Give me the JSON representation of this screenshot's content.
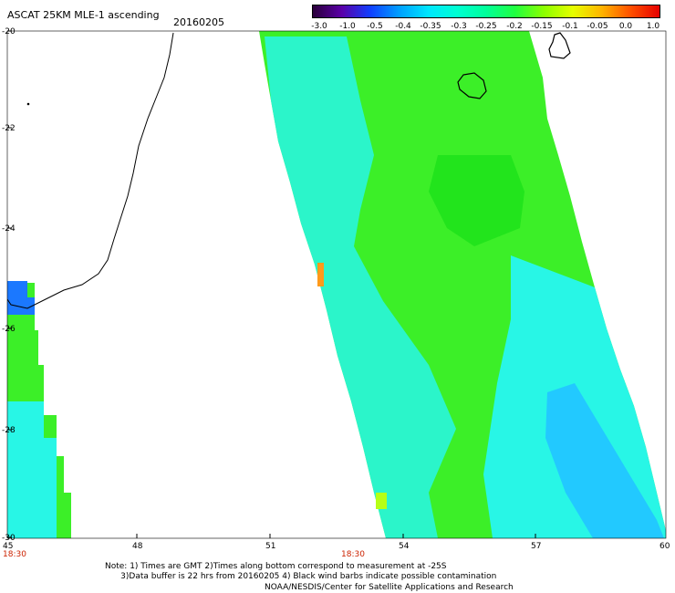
{
  "header": {
    "title": "ASCAT 25KM MLE-1 ascending",
    "date": "20160205"
  },
  "colorbar": {
    "labels": [
      "-3.0",
      "-1.0",
      "-0.5",
      "-0.4",
      "-0.35",
      "-0.3",
      "-0.25",
      "-0.2",
      "-0.15",
      "-0.1",
      "-0.05",
      "0.0",
      "1.0"
    ],
    "colors": [
      "#2a003a",
      "#5a00a8",
      "#1040ff",
      "#00a0ff",
      "#00e6ff",
      "#00ffd2",
      "#00ff9a",
      "#20ff40",
      "#8cff00",
      "#e6ff00",
      "#ffb400",
      "#ff5000",
      "#e60000"
    ]
  },
  "map": {
    "lat_labels": [
      "-20",
      "-22",
      "-24",
      "-26",
      "-28",
      "-30"
    ],
    "lon_labels": [
      "45",
      "48",
      "51",
      "54",
      "57",
      "60"
    ],
    "time_labels": [
      "18:30",
      "18:30"
    ],
    "colors": {
      "green": "#3cef28",
      "green_dark": "#22e41c",
      "cyan": "#28f6e6",
      "light_blue": "#22c9ff",
      "blue": "#1b78ff",
      "dark_blue": "#1a22cc",
      "orange": "#ff9a1a",
      "yellow_green": "#b6ff16"
    }
  },
  "footer": {
    "note": "Note: 1) Times are GMT 2)Times along bottom correspond to measurement at -25S\n      3)Data buffer is 22 hrs from 20160205 4) Black wind barbs indicate possible contamination",
    "credit": "NOAA/NESDIS/Center for Satellite Applications and Research"
  }
}
